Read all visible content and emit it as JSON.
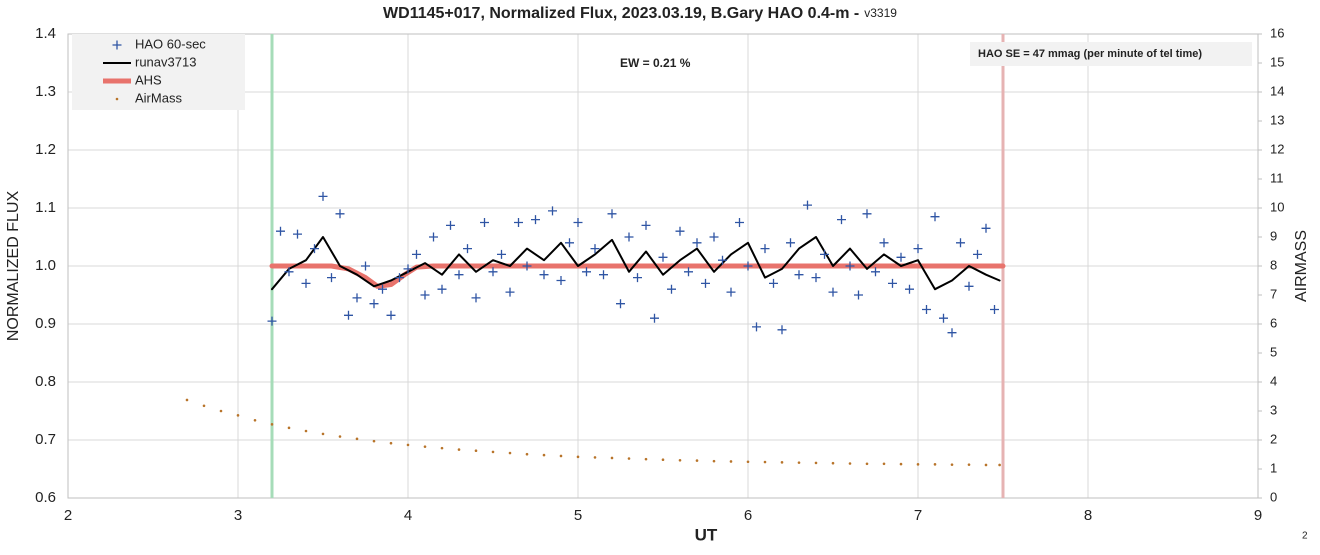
{
  "chart_data": {
    "type": "combo",
    "title": "WD1145+017, Normalized Flux, 2023.03.19, B.Gary HAO 0.4-m -",
    "subtitle": "v3319",
    "xlabel": "UT",
    "ylabel": "NORMALIZED FLUX",
    "y2label": "AIRMASS",
    "annotations": [
      "EW = 0.21 %",
      "HAO SE =  47 mmag (per minute of tel time)"
    ],
    "page_number": "2",
    "xlim": [
      2,
      9
    ],
    "xticks": [
      2,
      3,
      4,
      5,
      6,
      7,
      8,
      9
    ],
    "ylim": [
      0.6,
      1.4
    ],
    "yticks": [
      0.6,
      0.7,
      0.8,
      0.9,
      {
        "value": 1,
        "label": "1.0"
      },
      1.1,
      1.2,
      1.3,
      1.4
    ],
    "y2lim": [
      0,
      16
    ],
    "y2ticks": [
      0,
      1,
      2,
      3,
      4,
      5,
      6,
      7,
      8,
      9,
      10,
      11,
      12,
      13,
      14,
      15,
      16
    ],
    "grid": true,
    "legend": "upper left",
    "vlines": [
      {
        "x": 3.2,
        "color": "#a6dcb8"
      },
      {
        "x": 7.5,
        "color": "#e6b3b3"
      }
    ],
    "series": [
      {
        "name": "HAO 60-sec",
        "type": "scatter",
        "marker": "plus",
        "color": "#2f55a4",
        "x": [
          3.2,
          3.25,
          3.3,
          3.35,
          3.4,
          3.45,
          3.5,
          3.55,
          3.6,
          3.65,
          3.7,
          3.75,
          3.8,
          3.85,
          3.9,
          3.95,
          4.0,
          4.05,
          4.1,
          4.15,
          4.2,
          4.25,
          4.3,
          4.35,
          4.4,
          4.45,
          4.5,
          4.55,
          4.6,
          4.65,
          4.7,
          4.75,
          4.8,
          4.85,
          4.9,
          4.95,
          5.0,
          5.05,
          5.1,
          5.15,
          5.2,
          5.25,
          5.3,
          5.35,
          5.4,
          5.45,
          5.5,
          5.55,
          5.6,
          5.65,
          5.7,
          5.75,
          5.8,
          5.85,
          5.9,
          5.95,
          6.0,
          6.05,
          6.1,
          6.15,
          6.2,
          6.25,
          6.3,
          6.35,
          6.4,
          6.45,
          6.5,
          6.55,
          6.6,
          6.65,
          6.7,
          6.75,
          6.8,
          6.85,
          6.9,
          6.95,
          7.0,
          7.05,
          7.1,
          7.15,
          7.2,
          7.25,
          7.3,
          7.35,
          7.4,
          7.45
        ],
        "values": [
          0.905,
          1.06,
          0.99,
          1.055,
          0.97,
          1.03,
          1.12,
          0.98,
          1.09,
          0.915,
          0.945,
          1.0,
          0.935,
          0.96,
          0.915,
          0.98,
          0.995,
          1.02,
          0.95,
          1.05,
          0.96,
          1.07,
          0.985,
          1.03,
          0.945,
          1.075,
          0.99,
          1.02,
          0.955,
          1.075,
          1.0,
          1.08,
          0.985,
          1.095,
          0.975,
          1.04,
          1.075,
          0.99,
          1.03,
          0.985,
          1.09,
          0.935,
          1.05,
          0.98,
          1.07,
          0.91,
          1.015,
          0.96,
          1.06,
          0.99,
          1.04,
          0.97,
          1.05,
          1.01,
          0.955,
          1.075,
          1.0,
          0.895,
          1.03,
          0.97,
          0.89,
          1.04,
          0.985,
          1.105,
          0.98,
          1.02,
          0.955,
          1.08,
          1.0,
          0.95,
          1.09,
          0.99,
          1.04,
          0.97,
          1.015,
          0.96,
          1.03,
          0.925,
          1.085,
          0.91,
          0.885,
          1.04,
          0.965,
          1.02,
          1.065,
          0.925
        ]
      },
      {
        "name": "runav3713",
        "type": "line",
        "color": "#000000",
        "width": 2,
        "x": [
          3.2,
          3.3,
          3.4,
          3.5,
          3.6,
          3.7,
          3.8,
          3.9,
          4.0,
          4.1,
          4.2,
          4.3,
          4.4,
          4.5,
          4.6,
          4.7,
          4.8,
          4.9,
          5.0,
          5.1,
          5.2,
          5.3,
          5.4,
          5.5,
          5.6,
          5.7,
          5.8,
          5.9,
          6.0,
          6.1,
          6.2,
          6.3,
          6.4,
          6.5,
          6.6,
          6.7,
          6.8,
          6.9,
          7.0,
          7.1,
          7.2,
          7.3,
          7.4,
          7.48
        ],
        "values": [
          0.96,
          0.995,
          1.01,
          1.05,
          1.0,
          0.985,
          0.965,
          0.975,
          0.99,
          1.005,
          0.985,
          1.02,
          0.99,
          1.01,
          1.0,
          1.03,
          1.01,
          1.04,
          1.0,
          1.02,
          1.045,
          0.99,
          1.025,
          0.985,
          1.01,
          1.03,
          0.99,
          1.02,
          1.04,
          0.98,
          0.995,
          1.03,
          1.05,
          1.0,
          1.03,
          0.995,
          1.02,
          1.0,
          1.01,
          0.96,
          0.975,
          1.0,
          0.985,
          0.975
        ]
      },
      {
        "name": "AHS",
        "type": "line",
        "color": "#e8736c",
        "width": 5,
        "x": [
          3.2,
          3.55,
          3.65,
          3.75,
          3.82,
          3.9,
          3.98,
          4.05,
          4.15,
          7.5
        ],
        "values": [
          1.0,
          1.0,
          0.995,
          0.98,
          0.965,
          0.968,
          0.985,
          0.998,
          1.0,
          1.0
        ]
      },
      {
        "name": "AirMass",
        "type": "scatter",
        "marker": "dot",
        "color": "#b8742a",
        "axis": "y2",
        "x": [
          2.7,
          2.8,
          2.9,
          3.0,
          3.1,
          3.2,
          3.3,
          3.4,
          3.5,
          3.6,
          3.7,
          3.8,
          3.9,
          4.0,
          4.1,
          4.2,
          4.3,
          4.4,
          4.5,
          4.6,
          4.7,
          4.8,
          4.9,
          5.0,
          5.1,
          5.2,
          5.3,
          5.4,
          5.5,
          5.6,
          5.7,
          5.8,
          5.9,
          6.0,
          6.1,
          6.2,
          6.3,
          6.4,
          6.5,
          6.6,
          6.7,
          6.8,
          6.9,
          7.0,
          7.1,
          7.2,
          7.3,
          7.4,
          7.48
        ],
        "values": [
          3.38,
          3.18,
          3.0,
          2.85,
          2.68,
          2.54,
          2.42,
          2.31,
          2.21,
          2.12,
          2.04,
          1.96,
          1.89,
          1.83,
          1.77,
          1.72,
          1.67,
          1.63,
          1.59,
          1.55,
          1.51,
          1.48,
          1.45,
          1.42,
          1.4,
          1.38,
          1.36,
          1.34,
          1.32,
          1.3,
          1.29,
          1.27,
          1.26,
          1.25,
          1.24,
          1.23,
          1.22,
          1.21,
          1.2,
          1.19,
          1.18,
          1.18,
          1.17,
          1.16,
          1.16,
          1.15,
          1.15,
          1.14,
          1.14
        ]
      }
    ]
  }
}
